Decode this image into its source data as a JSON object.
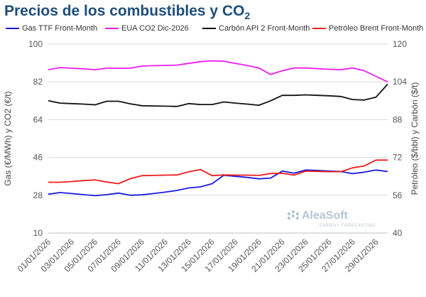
{
  "chart_data": {
    "type": "line",
    "title_main": "Precios de los combustibles y CO",
    "title_sub": "2",
    "ylabel_left": "Gas (€/MWh) y CO2 (€/t)",
    "ylabel_right": "Petróleo ($/bbl) y Carbón ($/t)",
    "ylim_left": [
      10,
      100
    ],
    "ylim_right": [
      40,
      120
    ],
    "yticks_left": [
      "10",
      "28",
      "46",
      "64",
      "82",
      "100"
    ],
    "yticks_right": [
      "40",
      "56",
      "72",
      "88",
      "104",
      "120"
    ],
    "grid": true,
    "legend_position": "top",
    "x": [
      "01/01/2026",
      "02/01/2026",
      "03/01/2026",
      "04/01/2026",
      "05/01/2026",
      "06/01/2026",
      "07/01/2026",
      "08/01/2026",
      "09/01/2026",
      "10/01/2026",
      "11/01/2026",
      "12/01/2026",
      "13/01/2026",
      "14/01/2026",
      "15/01/2026",
      "16/01/2026",
      "17/01/2026",
      "18/01/2026",
      "19/01/2026",
      "20/01/2026",
      "21/01/2026",
      "22/01/2026",
      "23/01/2026",
      "24/01/2026",
      "25/01/2026",
      "26/01/2026",
      "27/01/2026",
      "28/01/2026",
      "29/01/2026",
      "30/01/2026"
    ],
    "xtick_labels": [
      "01/01/2026",
      "03/01/2026",
      "05/01/2026",
      "07/01/2026",
      "09/01/2026",
      "11/01/2026",
      "13/01/2026",
      "15/01/2026",
      "17/01/2026",
      "19/01/2026",
      "21/01/2026",
      "23/01/2026",
      "25/01/2026",
      "27/01/2026",
      "29/01/2026"
    ],
    "series": [
      {
        "name": "Gas TTF Front-Month",
        "axis": "left",
        "color": "#1a1adb",
        "values": [
          28.5,
          29.3,
          28.8,
          28.3,
          27.8,
          28.3,
          29.0,
          28.0,
          28.2,
          28.8,
          29.5,
          30.3,
          31.5,
          32.0,
          33.5,
          37.5,
          37.0,
          36.5,
          35.8,
          36.2,
          39.5,
          38.5,
          40.0,
          39.8,
          39.5,
          39.3,
          38.3,
          39.0,
          40.0,
          39.3
        ]
      },
      {
        "name": "EUA CO2 Dic-2026",
        "axis": "left",
        "color": "#f01bf0",
        "values": [
          87.8,
          88.8,
          88.5,
          88.2,
          87.8,
          88.5,
          88.5,
          88.5,
          89.5,
          89.7,
          89.8,
          90.0,
          90.8,
          91.6,
          92.0,
          91.8,
          90.8,
          89.8,
          88.6,
          85.5,
          87.3,
          88.6,
          88.6,
          88.3,
          88.0,
          87.8,
          88.6,
          87.3,
          84.6,
          82.0
        ]
      },
      {
        "name": "Carbón API 2 Front-Month",
        "axis": "right",
        "color": "#111111",
        "values": [
          96.0,
          95.0,
          94.8,
          94.6,
          94.3,
          95.8,
          95.8,
          94.7,
          93.9,
          93.8,
          93.7,
          93.6,
          94.8,
          94.4,
          94.4,
          95.5,
          95.0,
          94.6,
          94.1,
          96.0,
          98.3,
          98.3,
          98.5,
          98.3,
          98.1,
          97.8,
          96.5,
          96.3,
          97.5,
          103.0
        ]
      },
      {
        "name": "Petróleo Brent Front-Month",
        "axis": "right",
        "color": "#ee1c1c",
        "values": [
          61.5,
          61.5,
          61.8,
          62.2,
          62.5,
          61.6,
          60.9,
          63.0,
          64.3,
          64.4,
          64.5,
          64.6,
          65.9,
          66.9,
          64.3,
          64.6,
          64.5,
          64.5,
          64.4,
          65.2,
          65.3,
          64.5,
          66.2,
          66.1,
          66.0,
          66.0,
          67.6,
          68.4,
          70.9,
          70.9
        ]
      }
    ]
  },
  "watermark": {
    "brand": "AleaSoft",
    "tagline": "ENERGY FORECASTING"
  }
}
